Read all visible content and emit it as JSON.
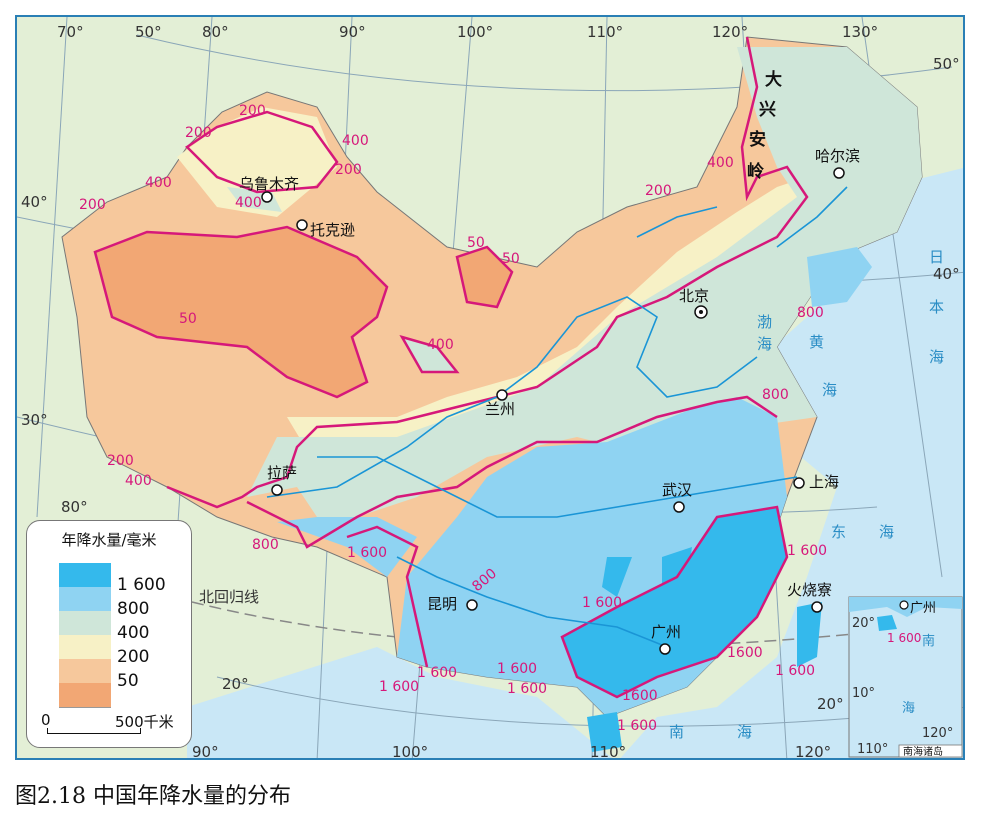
{
  "colors": {
    "c1600": "#34b9ec",
    "c800": "#8fd3f2",
    "c400": "#cfe6d9",
    "c200": "#f7f1c6",
    "c50": "#f6c89c",
    "c_lt50": "#f2a774",
    "sea": "#c9e7f6",
    "land_outside": "#e3efd6",
    "isohyet": "#d6187a",
    "river": "#1a95d6",
    "border": "#8a8a8a"
  },
  "longitude_labels": [
    "70°",
    "80°",
    "90°",
    "100°",
    "110°",
    "120°",
    "130°",
    "80°",
    "90°",
    "100°",
    "110°",
    "120°"
  ],
  "latitude_labels": [
    "50°",
    "50°",
    "40°",
    "40°",
    "30°",
    "20°",
    "20°"
  ],
  "tropic_label": "北回归线",
  "isohyet_labels": [
    "200",
    "200",
    "400",
    "400",
    "200",
    "400",
    "200",
    "200",
    "50",
    "50",
    "50",
    "400",
    "400",
    "200",
    "400",
    "800",
    "1 600",
    "800",
    "800",
    "1 600",
    "1 600",
    "1 600",
    "1 600",
    "1 600",
    "1600",
    "1 600",
    "1600",
    "1 600"
  ],
  "cities": [
    "乌鲁木齐",
    "托克逊",
    "北京",
    "哈尔滨",
    "兰州",
    "拉萨",
    "武汉",
    "上海",
    "昆明",
    "广州",
    "火烧寮"
  ],
  "mountain_range": [
    "大",
    "兴",
    "安",
    "岭"
  ],
  "seas": [
    "渤",
    "海",
    "黄",
    "海",
    "东",
    "海",
    "南",
    "海",
    "日",
    "本",
    "海"
  ],
  "inset": {
    "title": "南海诸岛",
    "city": "广州",
    "isohyet": "1 600",
    "sea_chars": [
      "南",
      "海"
    ],
    "lat_labels": [
      "20°",
      "10°"
    ],
    "lon_labels": [
      "110°",
      "120°"
    ]
  },
  "legend": {
    "title": "年降水量/毫米",
    "items": [
      "1 600",
      "800",
      "400",
      "200",
      "50"
    ]
  },
  "scale": {
    "zero": "0",
    "end": "500千米"
  },
  "caption": "图2.18  中国年降水量的分布"
}
